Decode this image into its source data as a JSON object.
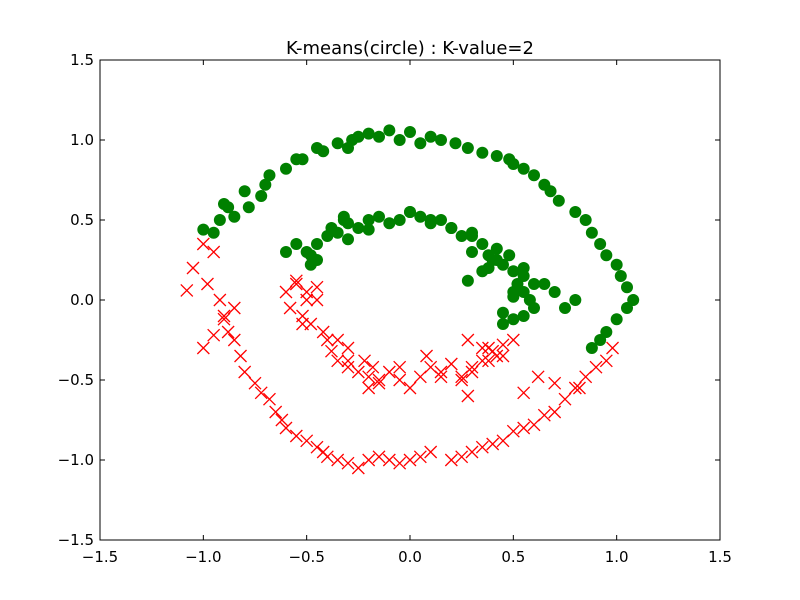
{
  "chart_data": {
    "type": "scatter",
    "title": "K-means(circle) : K-value=2",
    "xlabel": "",
    "ylabel": "",
    "xlim": [
      -1.5,
      1.5
    ],
    "ylim": [
      -1.5,
      1.5
    ],
    "xticks": [
      -1.5,
      -1.0,
      -0.5,
      0.0,
      0.5,
      1.0,
      1.5
    ],
    "yticks": [
      -1.5,
      -1.0,
      -0.5,
      0.0,
      0.5,
      1.0,
      1.5
    ],
    "xtick_labels": [
      "−1.5",
      "−1.0",
      "−0.5",
      "0.0",
      "0.5",
      "1.0",
      "1.5"
    ],
    "ytick_labels": [
      "−1.5",
      "−1.0",
      "−0.5",
      "0.0",
      "0.5",
      "1.0",
      "1.5"
    ],
    "grid": false,
    "series": [
      {
        "marker": "circle",
        "color": "#008000",
        "x": [
          -1.0,
          -0.92,
          -0.95,
          -0.88,
          -0.85,
          -0.78,
          -0.72,
          -0.7,
          -0.68,
          -0.6,
          -0.55,
          -0.52,
          -0.45,
          -0.42,
          -0.35,
          -0.3,
          -0.28,
          -0.25,
          -0.2,
          -0.15,
          -0.1,
          -0.05,
          0.0,
          0.05,
          0.1,
          0.15,
          0.22,
          0.28,
          0.35,
          0.42,
          0.48,
          0.5,
          0.55,
          0.6,
          0.65,
          0.68,
          0.72,
          0.8,
          0.85,
          0.88,
          0.92,
          0.95,
          1.0,
          1.02,
          1.05,
          1.08,
          1.05,
          1.0,
          0.95,
          0.92,
          0.88,
          -0.9,
          -0.8,
          -0.48,
          -0.5,
          -0.45,
          -0.4,
          -0.38,
          -0.35,
          -0.32,
          -0.3,
          -0.25,
          -0.2,
          -0.15,
          -0.1,
          -0.05,
          0.0,
          0.05,
          0.1,
          0.15,
          0.2,
          0.25,
          0.3,
          0.35,
          0.38,
          0.4,
          0.45,
          0.5,
          0.52,
          0.55,
          0.58,
          0.6,
          0.55,
          0.5,
          0.45,
          0.5,
          0.55,
          0.48,
          0.42,
          0.3,
          0.28,
          0.38,
          0.42,
          -0.3,
          -0.32,
          -0.2,
          -0.45,
          -0.48,
          -0.55,
          -0.6,
          0.55,
          0.6,
          0.5,
          0.45,
          0.35,
          0.2,
          0.1,
          0.0,
          0.3,
          0.8,
          0.75,
          0.7,
          0.65
        ],
        "y": [
          0.44,
          0.5,
          0.42,
          0.58,
          0.52,
          0.58,
          0.65,
          0.72,
          0.78,
          0.82,
          0.88,
          0.88,
          0.95,
          0.93,
          0.98,
          0.95,
          1.0,
          1.02,
          1.04,
          1.02,
          1.06,
          1.0,
          1.05,
          0.98,
          1.02,
          1.0,
          0.98,
          0.95,
          0.92,
          0.9,
          0.88,
          0.85,
          0.82,
          0.78,
          0.72,
          0.68,
          0.62,
          0.55,
          0.5,
          0.42,
          0.35,
          0.28,
          0.22,
          0.15,
          0.08,
          0.0,
          -0.05,
          -0.12,
          -0.2,
          -0.25,
          -0.3,
          0.6,
          0.68,
          0.22,
          0.3,
          0.35,
          0.4,
          0.45,
          0.42,
          0.5,
          0.38,
          0.45,
          0.5,
          0.52,
          0.48,
          0.5,
          0.55,
          0.52,
          0.48,
          0.5,
          0.45,
          0.4,
          0.42,
          0.35,
          0.28,
          0.25,
          0.22,
          0.18,
          0.1,
          0.05,
          0.0,
          -0.05,
          -0.1,
          -0.12,
          -0.15,
          0.05,
          0.15,
          0.28,
          0.32,
          0.3,
          0.12,
          0.2,
          0.25,
          0.48,
          0.52,
          0.44,
          0.25,
          0.28,
          0.35,
          0.3,
          0.2,
          0.1,
          0.02,
          -0.08,
          0.18,
          0.45,
          0.5,
          0.55,
          0.4,
          0.0,
          -0.05,
          0.05,
          0.1
        ]
      },
      {
        "marker": "x",
        "color": "#ff0000",
        "x": [
          -1.0,
          -1.05,
          -1.08,
          -0.95,
          -0.98,
          -0.92,
          -0.9,
          -0.88,
          -0.85,
          -0.82,
          -0.8,
          -0.75,
          -0.72,
          -0.68,
          -0.65,
          -0.62,
          -0.6,
          -0.55,
          -0.5,
          -0.45,
          -0.42,
          -0.4,
          -0.35,
          -0.3,
          -0.25,
          -0.2,
          -0.15,
          -0.1,
          -0.05,
          0.0,
          0.05,
          0.1,
          0.2,
          0.25,
          0.3,
          0.35,
          0.4,
          0.45,
          0.5,
          0.55,
          0.6,
          0.65,
          0.7,
          0.75,
          0.8,
          0.85,
          0.9,
          0.95,
          0.98,
          -1.0,
          -0.95,
          -0.9,
          -0.85,
          -0.55,
          -0.5,
          -0.45,
          -0.52,
          -0.48,
          -0.42,
          -0.4,
          -0.38,
          -0.35,
          -0.3,
          -0.25,
          -0.2,
          -0.15,
          -0.1,
          -0.05,
          0.0,
          0.05,
          0.1,
          0.15,
          0.2,
          0.25,
          0.3,
          0.35,
          0.4,
          0.45,
          0.5,
          0.42,
          0.38,
          0.35,
          0.3,
          -0.5,
          -0.45,
          -0.55,
          -0.6,
          -0.58,
          -0.52,
          -0.35,
          -0.3,
          -0.22,
          -0.18,
          0.08,
          0.25,
          0.28,
          -0.2,
          -0.15,
          0.15,
          0.28,
          0.45,
          0.38,
          -0.3,
          -0.05,
          0.62,
          0.7,
          0.55,
          0.82
        ],
        "y": [
          0.35,
          0.2,
          0.06,
          0.3,
          0.1,
          0.0,
          -0.1,
          -0.2,
          -0.25,
          -0.35,
          -0.45,
          -0.52,
          -0.58,
          -0.62,
          -0.7,
          -0.75,
          -0.8,
          -0.85,
          -0.88,
          -0.92,
          -0.95,
          -0.98,
          -1.0,
          -1.02,
          -1.05,
          -1.0,
          -0.98,
          -1.0,
          -1.02,
          -1.0,
          -0.98,
          -0.95,
          -1.0,
          -0.98,
          -0.95,
          -0.92,
          -0.9,
          -0.88,
          -0.82,
          -0.8,
          -0.78,
          -0.72,
          -0.7,
          -0.62,
          -0.55,
          -0.48,
          -0.42,
          -0.38,
          -0.3,
          -0.3,
          -0.22,
          -0.12,
          -0.05,
          0.1,
          0.05,
          0.0,
          -0.1,
          -0.15,
          -0.2,
          -0.25,
          -0.32,
          -0.38,
          -0.42,
          -0.45,
          -0.48,
          -0.5,
          -0.45,
          -0.5,
          -0.55,
          -0.48,
          -0.42,
          -0.45,
          -0.4,
          -0.48,
          -0.42,
          -0.38,
          -0.32,
          -0.28,
          -0.25,
          -0.35,
          -0.38,
          -0.3,
          -0.45,
          0.0,
          0.08,
          0.12,
          0.05,
          -0.05,
          -0.15,
          -0.25,
          -0.3,
          -0.38,
          -0.42,
          -0.35,
          -0.5,
          -0.25,
          -0.55,
          -0.52,
          -0.48,
          -0.6,
          -0.35,
          -0.3,
          -0.38,
          -0.42,
          -0.48,
          -0.52,
          -0.58,
          -0.55
        ]
      }
    ]
  }
}
